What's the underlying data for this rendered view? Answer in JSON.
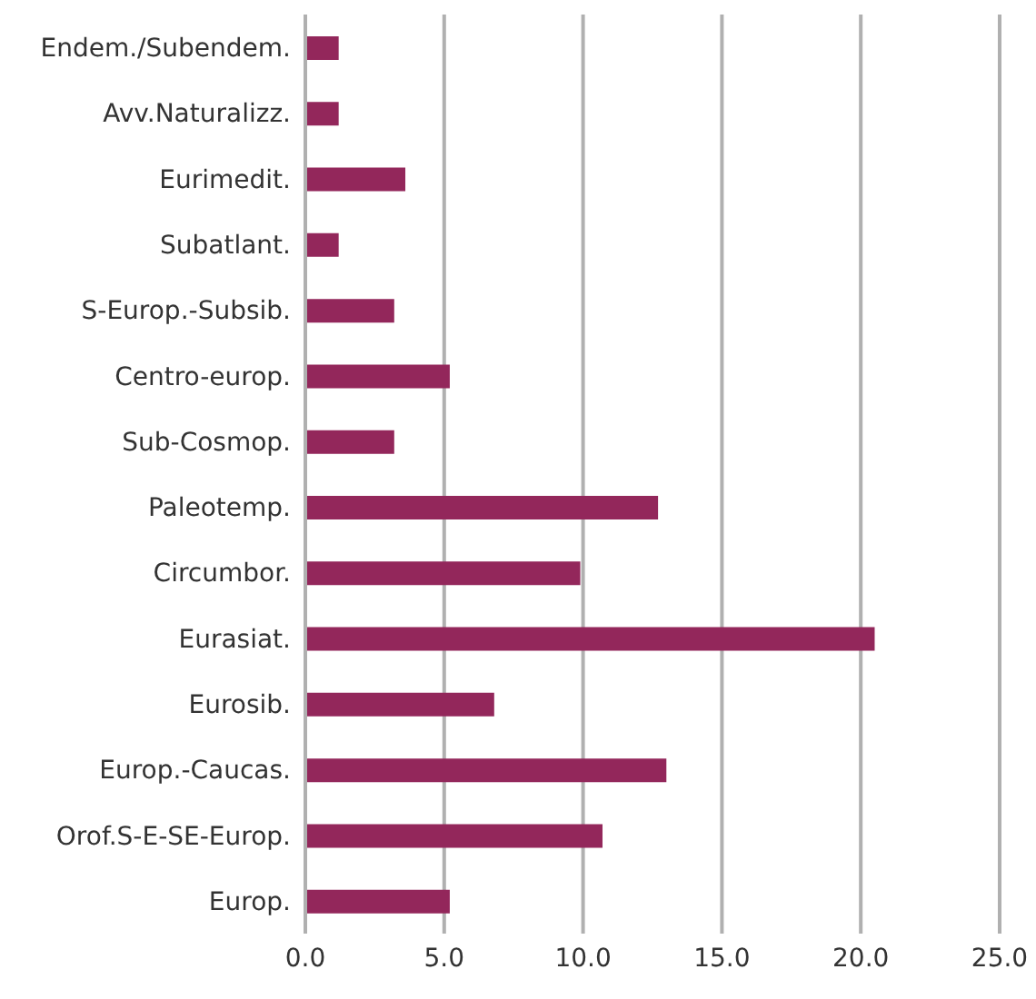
{
  "chart_data": {
    "type": "bar",
    "orientation": "horizontal",
    "categories": [
      "Endem./Subendem.",
      "Avv.Naturalizz.",
      "Eurimedit.",
      "Subatlant.",
      "S-Europ.-Subsib.",
      "Centro-europ.",
      "Sub-Cosmop.",
      "Paleotemp.",
      "Circumbor.",
      "Eurasiat.",
      "Eurosib.",
      "Europ.-Caucas.",
      "Orof.S-E-SE-Europ.",
      "Europ."
    ],
    "values": [
      1.2,
      1.2,
      3.6,
      1.2,
      3.2,
      5.2,
      3.2,
      12.7,
      9.9,
      20.5,
      6.8,
      13.0,
      10.7,
      5.2
    ],
    "color": "#93275b",
    "xlim": [
      0,
      25
    ],
    "xticks": [
      {
        "value": 0,
        "label": "0.0"
      },
      {
        "value": 5,
        "label": "5.0"
      },
      {
        "value": 10,
        "label": "10.0"
      },
      {
        "value": 15,
        "label": "15.0"
      },
      {
        "value": 20,
        "label": "20.0"
      },
      {
        "value": 25,
        "label": "25.0"
      }
    ],
    "grid": "x"
  }
}
